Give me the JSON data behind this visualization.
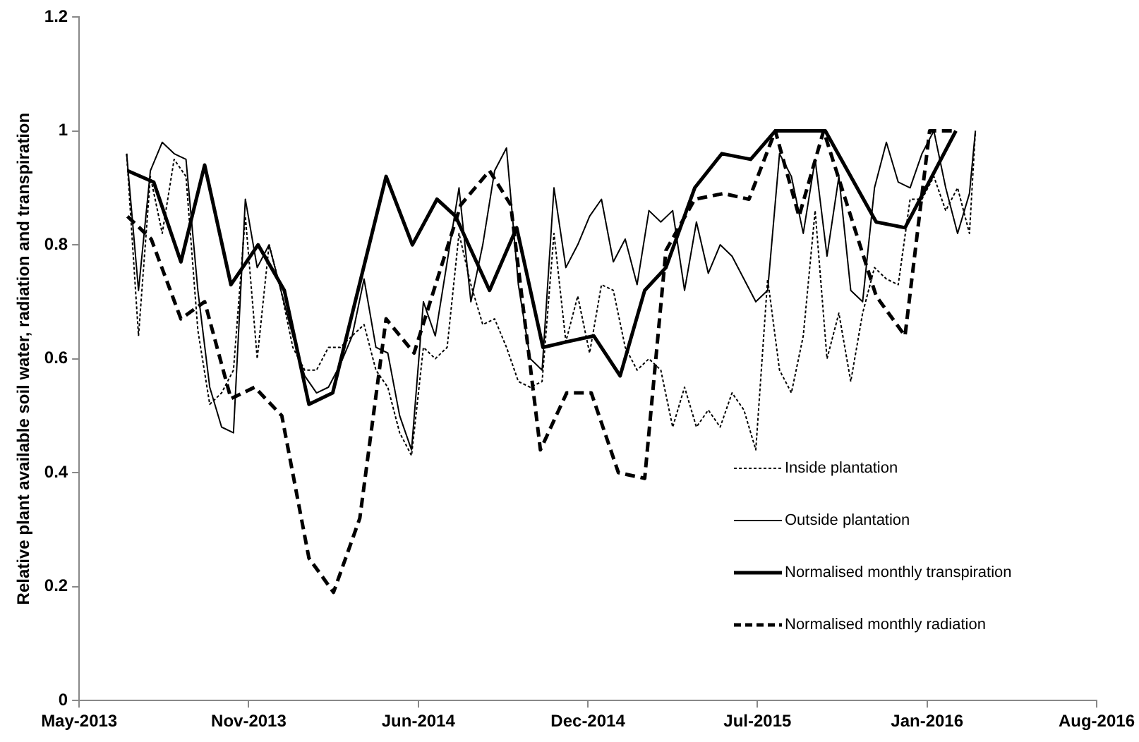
{
  "chart_data": {
    "type": "line",
    "ylabel": "Relative plant available soil water, radiation and transpiration",
    "x": [
      "2013-06-26",
      "2013-07-10",
      "2013-07-24",
      "2013-08-07",
      "2013-08-21",
      "2013-09-04",
      "2013-09-18",
      "2013-10-02",
      "2013-10-16",
      "2013-10-30",
      "2013-11-13",
      "2013-11-27",
      "2013-12-11",
      "2013-12-25",
      "2014-01-08",
      "2014-01-22",
      "2014-02-05",
      "2014-02-19",
      "2014-03-05",
      "2014-03-19",
      "2014-04-02",
      "2014-04-16",
      "2014-04-30",
      "2014-05-14",
      "2014-05-28",
      "2014-06-11",
      "2014-06-25",
      "2014-07-09",
      "2014-07-23",
      "2014-08-06",
      "2014-08-20",
      "2014-09-03",
      "2014-09-17",
      "2014-10-01",
      "2014-10-15",
      "2014-10-29",
      "2014-11-12",
      "2014-11-26",
      "2014-12-10",
      "2014-12-24",
      "2015-01-07",
      "2015-01-21",
      "2015-02-04",
      "2015-02-18",
      "2015-03-04",
      "2015-03-18",
      "2015-04-01",
      "2015-04-15",
      "2015-04-29",
      "2015-05-13",
      "2015-05-27",
      "2015-06-10",
      "2015-06-24",
      "2015-07-08",
      "2015-07-22",
      "2015-08-05",
      "2015-08-19",
      "2015-09-02",
      "2015-09-16",
      "2015-09-30",
      "2015-10-14",
      "2015-10-28",
      "2015-11-11",
      "2015-11-25",
      "2015-12-09",
      "2015-12-23",
      "2016-01-06",
      "2016-01-20",
      "2016-02-03",
      "2016-02-17",
      "2016-03-02",
      "2016-03-16",
      "2016-03-23"
    ],
    "series": [
      {
        "name": "Inside plantation",
        "color": "#000000",
        "line_style": "dotted",
        "values": [
          0.96,
          0.64,
          0.92,
          0.82,
          0.95,
          0.92,
          0.65,
          0.52,
          0.54,
          0.58,
          0.85,
          0.6,
          0.8,
          0.72,
          0.62,
          0.58,
          0.58,
          0.62,
          0.62,
          0.64,
          0.66,
          0.58,
          0.55,
          0.47,
          0.43,
          0.62,
          0.6,
          0.62,
          0.82,
          0.73,
          0.66,
          0.67,
          0.62,
          0.56,
          0.55,
          0.56,
          0.82,
          0.63,
          0.71,
          0.61,
          0.73,
          0.72,
          0.62,
          0.58,
          0.6,
          0.58,
          0.48,
          0.55,
          0.48,
          0.51,
          0.48,
          0.54,
          0.51,
          0.44,
          0.74,
          0.58,
          0.54,
          0.64,
          0.86,
          0.6,
          0.68,
          0.56,
          0.68,
          0.76,
          0.74,
          0.73,
          0.88,
          0.88,
          0.92,
          0.86,
          0.9,
          0.82,
          1.0
        ]
      },
      {
        "name": "Outside plantation",
        "color": "#000000",
        "line_style": "solid",
        "values": [
          0.96,
          0.72,
          0.93,
          0.98,
          0.96,
          0.95,
          0.72,
          0.55,
          0.48,
          0.47,
          0.88,
          0.76,
          0.8,
          0.72,
          0.64,
          0.57,
          0.54,
          0.55,
          0.59,
          0.64,
          0.74,
          0.62,
          0.61,
          0.5,
          0.44,
          0.7,
          0.64,
          0.77,
          0.9,
          0.7,
          0.8,
          0.93,
          0.97,
          0.73,
          0.6,
          0.58,
          0.9,
          0.76,
          0.8,
          0.85,
          0.88,
          0.77,
          0.81,
          0.73,
          0.86,
          0.84,
          0.86,
          0.72,
          0.84,
          0.75,
          0.8,
          0.78,
          0.74,
          0.7,
          0.72,
          0.96,
          0.92,
          0.82,
          0.95,
          0.78,
          0.92,
          0.72,
          0.7,
          0.9,
          0.98,
          0.91,
          0.9,
          0.96,
          1.0,
          0.9,
          0.82,
          0.89,
          1.0
        ]
      },
      {
        "name": "Normalised monthly transpiration",
        "color": "#000000",
        "line_style": "solid",
        "x": [
          "2013-06-27",
          "2013-07-28",
          "2013-08-29",
          "2013-09-26",
          "2013-10-27",
          "2013-11-28",
          "2013-12-29",
          "2014-01-27",
          "2014-02-24",
          "2014-04-28",
          "2014-05-29",
          "2014-06-27",
          "2014-07-19",
          "2014-08-28",
          "2014-09-29",
          "2014-10-30",
          "2014-11-28",
          "2014-12-29",
          "2015-01-29",
          "2015-02-27",
          "2015-03-24",
          "2015-04-27",
          "2015-05-29",
          "2015-07-02",
          "2015-07-31",
          "2015-09-28",
          "2015-11-27",
          "2015-12-31",
          "2016-02-29"
        ],
        "values": [
          0.93,
          0.91,
          0.77,
          0.94,
          0.73,
          0.8,
          0.72,
          0.52,
          0.54,
          0.92,
          0.8,
          0.88,
          0.85,
          0.72,
          0.83,
          0.62,
          0.63,
          0.64,
          0.57,
          0.72,
          0.76,
          0.9,
          0.96,
          0.95,
          1.0,
          1.0,
          0.84,
          0.83,
          1.0
        ]
      },
      {
        "name": "Normalised monthly radiation",
        "color": "#000000",
        "line_style": "dashed",
        "x": [
          "2013-06-27",
          "2013-07-25",
          "2013-08-29",
          "2013-09-26",
          "2013-10-27",
          "2013-11-24",
          "2013-12-26",
          "2014-01-27",
          "2014-02-25",
          "2014-03-28",
          "2014-04-28",
          "2014-05-31",
          "2014-07-25",
          "2014-08-28",
          "2014-09-22",
          "2014-10-27",
          "2014-11-27",
          "2014-12-26",
          "2015-01-27",
          "2015-02-27",
          "2015-03-24",
          "2015-04-27",
          "2015-05-31",
          "2015-06-30",
          "2015-07-31",
          "2015-08-28",
          "2015-09-26",
          "2015-11-27",
          "2015-12-31",
          "2016-01-29",
          "2016-02-28"
        ],
        "values": [
          0.85,
          0.81,
          0.67,
          0.7,
          0.53,
          0.55,
          0.5,
          0.25,
          0.19,
          0.32,
          0.67,
          0.61,
          0.87,
          0.93,
          0.87,
          0.44,
          0.54,
          0.54,
          0.4,
          0.39,
          0.79,
          0.88,
          0.89,
          0.88,
          1.0,
          0.85,
          1.0,
          0.71,
          0.64,
          1.0,
          1.0
        ]
      }
    ],
    "xlim": [
      "2013-05-01",
      "2016-08-13"
    ],
    "xticks": [
      {
        "value": "2013-05-01",
        "label": "May-2013"
      },
      {
        "value": "2013-11-17",
        "label": "Nov-2013"
      },
      {
        "value": "2014-06-05",
        "label": "Jun-2014"
      },
      {
        "value": "2014-12-22",
        "label": "Dec-2014"
      },
      {
        "value": "2015-07-10",
        "label": "Jul-2015"
      },
      {
        "value": "2016-01-26",
        "label": "Jan-2016"
      },
      {
        "value": "2016-08-13",
        "label": "Aug-2016"
      }
    ],
    "ylim": [
      0,
      1.2
    ],
    "yticks": [
      0,
      0.2,
      0.4,
      0.6,
      0.8,
      1,
      1.2
    ],
    "grid": false,
    "legend": "bottom right",
    "marker": "none"
  }
}
